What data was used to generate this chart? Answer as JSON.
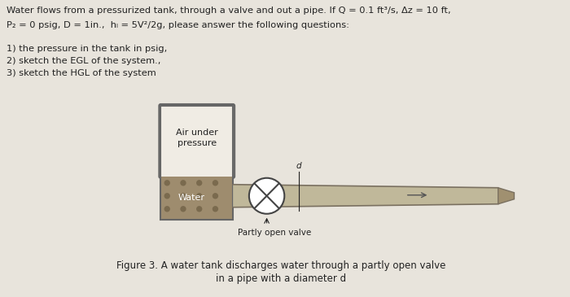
{
  "background_color": "#e8e4dc",
  "title_text_line1": "Water flows from a pressurized tank, through a valve and out a pipe. If Q = 0.1 ft³/s, Δz = 10 ft,",
  "title_text_line2": "P₂ = 0 psig, D = 1in.,  hₗ = 5V²/2g, please answer the following questions:",
  "question1": "1) the pressure in the tank in psig,",
  "question2": "2) sketch the EGL of the system.,",
  "question3": "3) sketch the HGL of the system",
  "air_label": "Air under\npressure",
  "water_label": "Water",
  "valve_label": "Partly open valve",
  "figure_caption_line1": "Figure 3. A water tank discharges water through a partly open valve",
  "figure_caption_line2": "in a pipe with a diameter d",
  "pipe_label": "d",
  "text_color": "#222222",
  "tank_outline_color": "#666666",
  "water_color": "#9e8c6e",
  "water_dot_color": "#7a6a4e",
  "air_color": "#f0ece4",
  "pipe_fill_color": "#c0b89a",
  "pipe_edge_color": "#7a7060",
  "valve_edge_color": "#444444",
  "valve_fill_color": "#ffffff",
  "taper_fill_color": "#a09070",
  "arrow_color": "#555555"
}
